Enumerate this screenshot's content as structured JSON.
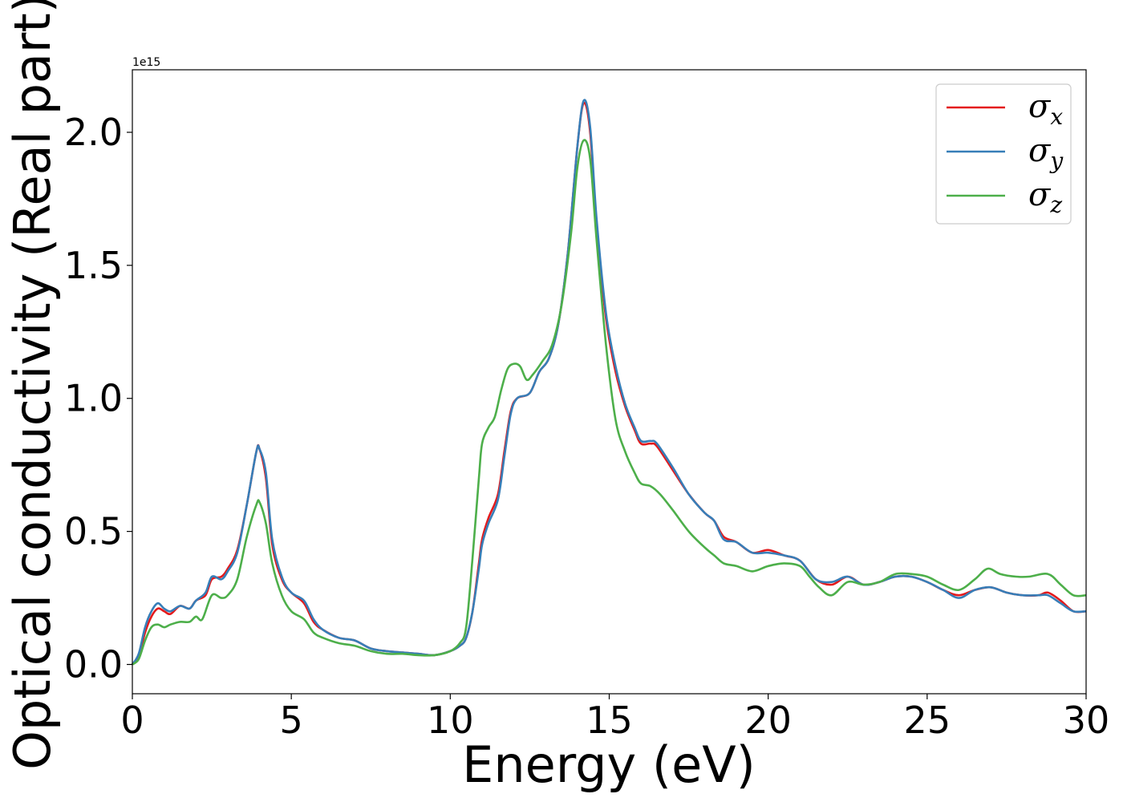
{
  "chart_data": {
    "type": "line",
    "title": "",
    "xlabel": "Energy (eV)",
    "ylabel": "Optical conductivity (Real part)",
    "y_offset_label": "1e15",
    "xlim": [
      0,
      30
    ],
    "ylim": [
      -0.11,
      2.235
    ],
    "xticks": [
      0,
      5,
      10,
      15,
      20,
      25,
      30
    ],
    "xtick_labels": [
      "0",
      "5",
      "10",
      "15",
      "20",
      "25",
      "30"
    ],
    "yticks": [
      0.0,
      0.5,
      1.0,
      1.5,
      2.0
    ],
    "ytick_labels": [
      "0.0",
      "0.5",
      "1.0",
      "1.5",
      "2.0"
    ],
    "grid": false,
    "legend_position": "top-right",
    "series": [
      {
        "name": "σx",
        "base": "σ",
        "sub": "x",
        "color": "#e41a1c",
        "points": [
          [
            0,
            0.0
          ],
          [
            0.2,
            0.03
          ],
          [
            0.4,
            0.12
          ],
          [
            0.6,
            0.18
          ],
          [
            0.8,
            0.21
          ],
          [
            1.0,
            0.2
          ],
          [
            1.2,
            0.19
          ],
          [
            1.5,
            0.22
          ],
          [
            1.8,
            0.21
          ],
          [
            2.0,
            0.24
          ],
          [
            2.3,
            0.26
          ],
          [
            2.5,
            0.32
          ],
          [
            2.8,
            0.33
          ],
          [
            3.0,
            0.36
          ],
          [
            3.3,
            0.43
          ],
          [
            3.6,
            0.6
          ],
          [
            3.9,
            0.8
          ],
          [
            4.0,
            0.81
          ],
          [
            4.2,
            0.7
          ],
          [
            4.4,
            0.45
          ],
          [
            4.7,
            0.32
          ],
          [
            5.0,
            0.27
          ],
          [
            5.4,
            0.23
          ],
          [
            5.7,
            0.16
          ],
          [
            6.0,
            0.13
          ],
          [
            6.5,
            0.1
          ],
          [
            7.0,
            0.09
          ],
          [
            7.5,
            0.06
          ],
          [
            8.0,
            0.05
          ],
          [
            8.5,
            0.045
          ],
          [
            9.0,
            0.04
          ],
          [
            9.5,
            0.035
          ],
          [
            10.0,
            0.05
          ],
          [
            10.3,
            0.07
          ],
          [
            10.5,
            0.1
          ],
          [
            10.7,
            0.2
          ],
          [
            10.9,
            0.38
          ],
          [
            11.0,
            0.47
          ],
          [
            11.2,
            0.55
          ],
          [
            11.5,
            0.64
          ],
          [
            11.7,
            0.8
          ],
          [
            11.9,
            0.95
          ],
          [
            12.1,
            1.0
          ],
          [
            12.5,
            1.02
          ],
          [
            12.8,
            1.1
          ],
          [
            13.1,
            1.15
          ],
          [
            13.4,
            1.28
          ],
          [
            13.7,
            1.55
          ],
          [
            14.0,
            1.95
          ],
          [
            14.2,
            2.11
          ],
          [
            14.4,
            2.0
          ],
          [
            14.6,
            1.65
          ],
          [
            14.9,
            1.3
          ],
          [
            15.2,
            1.1
          ],
          [
            15.5,
            0.97
          ],
          [
            15.8,
            0.88
          ],
          [
            16.0,
            0.83
          ],
          [
            16.3,
            0.83
          ],
          [
            16.5,
            0.82
          ],
          [
            17.0,
            0.73
          ],
          [
            17.5,
            0.64
          ],
          [
            18.0,
            0.57
          ],
          [
            18.3,
            0.54
          ],
          [
            18.6,
            0.48
          ],
          [
            19.0,
            0.46
          ],
          [
            19.5,
            0.42
          ],
          [
            20.0,
            0.43
          ],
          [
            20.5,
            0.41
          ],
          [
            21.0,
            0.39
          ],
          [
            21.5,
            0.32
          ],
          [
            22.0,
            0.3
          ],
          [
            22.5,
            0.33
          ],
          [
            23.0,
            0.3
          ],
          [
            23.5,
            0.31
          ],
          [
            24.0,
            0.33
          ],
          [
            24.5,
            0.33
          ],
          [
            25.0,
            0.31
          ],
          [
            25.5,
            0.28
          ],
          [
            26.0,
            0.26
          ],
          [
            26.5,
            0.28
          ],
          [
            27.0,
            0.29
          ],
          [
            27.5,
            0.27
          ],
          [
            28.0,
            0.26
          ],
          [
            28.5,
            0.26
          ],
          [
            28.8,
            0.27
          ],
          [
            29.2,
            0.24
          ],
          [
            29.6,
            0.2
          ],
          [
            30.0,
            0.2
          ]
        ]
      },
      {
        "name": "σy",
        "base": "σ",
        "sub": "y",
        "color": "#377eb8",
        "points": [
          [
            0,
            0.0
          ],
          [
            0.2,
            0.04
          ],
          [
            0.4,
            0.14
          ],
          [
            0.6,
            0.2
          ],
          [
            0.8,
            0.23
          ],
          [
            1.0,
            0.21
          ],
          [
            1.2,
            0.2
          ],
          [
            1.5,
            0.22
          ],
          [
            1.8,
            0.21
          ],
          [
            2.0,
            0.24
          ],
          [
            2.3,
            0.27
          ],
          [
            2.5,
            0.33
          ],
          [
            2.8,
            0.32
          ],
          [
            3.0,
            0.35
          ],
          [
            3.3,
            0.42
          ],
          [
            3.6,
            0.6
          ],
          [
            3.9,
            0.8
          ],
          [
            4.0,
            0.81
          ],
          [
            4.2,
            0.72
          ],
          [
            4.4,
            0.47
          ],
          [
            4.7,
            0.33
          ],
          [
            5.0,
            0.27
          ],
          [
            5.4,
            0.24
          ],
          [
            5.7,
            0.17
          ],
          [
            6.0,
            0.13
          ],
          [
            6.5,
            0.1
          ],
          [
            7.0,
            0.09
          ],
          [
            7.5,
            0.06
          ],
          [
            8.0,
            0.05
          ],
          [
            8.5,
            0.045
          ],
          [
            9.0,
            0.04
          ],
          [
            9.5,
            0.035
          ],
          [
            10.0,
            0.05
          ],
          [
            10.3,
            0.07
          ],
          [
            10.5,
            0.1
          ],
          [
            10.7,
            0.2
          ],
          [
            10.9,
            0.36
          ],
          [
            11.0,
            0.45
          ],
          [
            11.2,
            0.53
          ],
          [
            11.5,
            0.62
          ],
          [
            11.7,
            0.78
          ],
          [
            11.9,
            0.94
          ],
          [
            12.1,
            1.0
          ],
          [
            12.5,
            1.02
          ],
          [
            12.8,
            1.1
          ],
          [
            13.1,
            1.15
          ],
          [
            13.4,
            1.28
          ],
          [
            13.7,
            1.55
          ],
          [
            14.0,
            1.95
          ],
          [
            14.2,
            2.12
          ],
          [
            14.4,
            2.02
          ],
          [
            14.6,
            1.68
          ],
          [
            14.9,
            1.32
          ],
          [
            15.2,
            1.12
          ],
          [
            15.5,
            0.98
          ],
          [
            15.8,
            0.89
          ],
          [
            16.0,
            0.84
          ],
          [
            16.3,
            0.84
          ],
          [
            16.5,
            0.83
          ],
          [
            17.0,
            0.74
          ],
          [
            17.5,
            0.64
          ],
          [
            18.0,
            0.57
          ],
          [
            18.3,
            0.54
          ],
          [
            18.6,
            0.47
          ],
          [
            19.0,
            0.46
          ],
          [
            19.5,
            0.42
          ],
          [
            20.0,
            0.42
          ],
          [
            20.5,
            0.41
          ],
          [
            21.0,
            0.39
          ],
          [
            21.5,
            0.32
          ],
          [
            22.0,
            0.31
          ],
          [
            22.5,
            0.33
          ],
          [
            23.0,
            0.3
          ],
          [
            23.5,
            0.31
          ],
          [
            24.0,
            0.33
          ],
          [
            24.5,
            0.33
          ],
          [
            25.0,
            0.31
          ],
          [
            25.5,
            0.28
          ],
          [
            26.0,
            0.25
          ],
          [
            26.5,
            0.28
          ],
          [
            27.0,
            0.29
          ],
          [
            27.5,
            0.27
          ],
          [
            28.0,
            0.26
          ],
          [
            28.5,
            0.26
          ],
          [
            28.8,
            0.26
          ],
          [
            29.2,
            0.23
          ],
          [
            29.6,
            0.2
          ],
          [
            30.0,
            0.2
          ]
        ]
      },
      {
        "name": "σz",
        "base": "σ",
        "sub": "z",
        "color": "#4daf4a",
        "points": [
          [
            0,
            0.0
          ],
          [
            0.2,
            0.02
          ],
          [
            0.4,
            0.09
          ],
          [
            0.6,
            0.14
          ],
          [
            0.8,
            0.15
          ],
          [
            1.0,
            0.14
          ],
          [
            1.2,
            0.15
          ],
          [
            1.5,
            0.16
          ],
          [
            1.8,
            0.16
          ],
          [
            2.0,
            0.18
          ],
          [
            2.2,
            0.17
          ],
          [
            2.5,
            0.26
          ],
          [
            2.8,
            0.25
          ],
          [
            3.0,
            0.26
          ],
          [
            3.3,
            0.32
          ],
          [
            3.6,
            0.48
          ],
          [
            3.9,
            0.6
          ],
          [
            4.0,
            0.61
          ],
          [
            4.2,
            0.53
          ],
          [
            4.4,
            0.38
          ],
          [
            4.7,
            0.26
          ],
          [
            5.0,
            0.2
          ],
          [
            5.4,
            0.17
          ],
          [
            5.7,
            0.12
          ],
          [
            6.0,
            0.1
          ],
          [
            6.5,
            0.08
          ],
          [
            7.0,
            0.07
          ],
          [
            7.5,
            0.05
          ],
          [
            8.0,
            0.04
          ],
          [
            8.5,
            0.04
          ],
          [
            9.0,
            0.035
          ],
          [
            9.5,
            0.035
          ],
          [
            10.0,
            0.05
          ],
          [
            10.3,
            0.08
          ],
          [
            10.5,
            0.14
          ],
          [
            10.7,
            0.4
          ],
          [
            10.9,
            0.7
          ],
          [
            11.0,
            0.83
          ],
          [
            11.2,
            0.89
          ],
          [
            11.4,
            0.93
          ],
          [
            11.6,
            1.03
          ],
          [
            11.8,
            1.11
          ],
          [
            12.0,
            1.13
          ],
          [
            12.2,
            1.12
          ],
          [
            12.4,
            1.07
          ],
          [
            12.6,
            1.09
          ],
          [
            12.9,
            1.14
          ],
          [
            13.2,
            1.2
          ],
          [
            13.5,
            1.35
          ],
          [
            13.8,
            1.62
          ],
          [
            14.0,
            1.87
          ],
          [
            14.2,
            1.97
          ],
          [
            14.4,
            1.9
          ],
          [
            14.6,
            1.6
          ],
          [
            14.9,
            1.2
          ],
          [
            15.2,
            0.92
          ],
          [
            15.5,
            0.8
          ],
          [
            15.8,
            0.72
          ],
          [
            16.0,
            0.68
          ],
          [
            16.3,
            0.67
          ],
          [
            16.6,
            0.64
          ],
          [
            17.0,
            0.58
          ],
          [
            17.5,
            0.5
          ],
          [
            18.0,
            0.44
          ],
          [
            18.3,
            0.41
          ],
          [
            18.6,
            0.38
          ],
          [
            19.0,
            0.37
          ],
          [
            19.5,
            0.35
          ],
          [
            20.0,
            0.37
          ],
          [
            20.5,
            0.38
          ],
          [
            21.0,
            0.37
          ],
          [
            21.3,
            0.33
          ],
          [
            21.6,
            0.29
          ],
          [
            22.0,
            0.26
          ],
          [
            22.5,
            0.31
          ],
          [
            23.0,
            0.3
          ],
          [
            23.5,
            0.31
          ],
          [
            24.0,
            0.34
          ],
          [
            24.5,
            0.34
          ],
          [
            25.0,
            0.33
          ],
          [
            25.5,
            0.3
          ],
          [
            26.0,
            0.28
          ],
          [
            26.5,
            0.32
          ],
          [
            26.9,
            0.36
          ],
          [
            27.3,
            0.34
          ],
          [
            27.8,
            0.33
          ],
          [
            28.2,
            0.33
          ],
          [
            28.8,
            0.34
          ],
          [
            29.2,
            0.3
          ],
          [
            29.6,
            0.26
          ],
          [
            30.0,
            0.26
          ]
        ]
      }
    ]
  }
}
